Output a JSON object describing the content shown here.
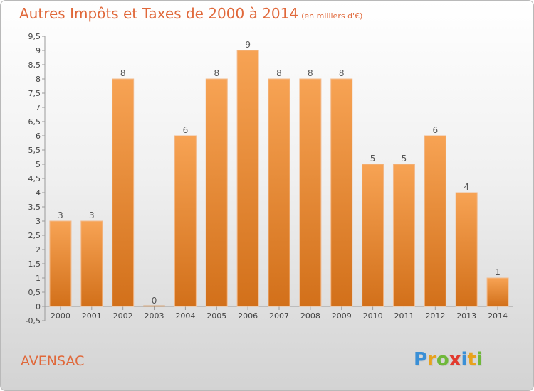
{
  "title": "Autres Impôts et Taxes de 2000 à 2014",
  "title_unit": "(en milliers d'€)",
  "place": "AVENSAC",
  "logo": {
    "text": "Proxiti",
    "letters": [
      {
        "ch": "P",
        "color": "#3a8fd6"
      },
      {
        "ch": "r",
        "color": "#e8a21c"
      },
      {
        "ch": "o",
        "color": "#6fb83a"
      },
      {
        "ch": "x",
        "color": "#e23a2e"
      },
      {
        "ch": "i",
        "color": "#3a8fd6"
      },
      {
        "ch": "t",
        "color": "#e8a21c"
      },
      {
        "ch": "i",
        "color": "#6fb83a"
      }
    ]
  },
  "colors": {
    "bar_top": "#f7a354",
    "bar_bottom": "#d2701a",
    "accent": "#e0683a"
  },
  "chart_data": {
    "type": "bar",
    "title": "Autres Impôts et Taxes de 2000 à 2014",
    "xlabel": "",
    "ylabel": "",
    "categories": [
      "2000",
      "2001",
      "2002",
      "2003",
      "2004",
      "2005",
      "2006",
      "2007",
      "2008",
      "2009",
      "2010",
      "2011",
      "2012",
      "2013",
      "2014"
    ],
    "values": [
      3,
      3,
      8,
      0,
      6,
      8,
      9,
      8,
      8,
      8,
      5,
      5,
      6,
      4,
      1
    ],
    "value_labels": [
      "3",
      "3",
      "8",
      "0",
      "6",
      "8",
      "9",
      "8",
      "8",
      "8",
      "5",
      "5",
      "6",
      "4",
      "1"
    ],
    "ylim": [
      -0.5,
      9.5
    ],
    "yticks": [
      -0.5,
      0,
      0.5,
      1,
      1.5,
      2,
      2.5,
      3,
      3.5,
      4,
      4.5,
      5,
      5.5,
      6,
      6.5,
      7,
      7.5,
      8,
      8.5,
      9,
      9.5
    ],
    "ytick_labels": [
      "-0,5",
      "0",
      "0,5",
      "1",
      "1,5",
      "2",
      "2,5",
      "3",
      "3,5",
      "4",
      "4,5",
      "5",
      "5,5",
      "6",
      "6,5",
      "7",
      "7,5",
      "8",
      "8,5",
      "9",
      "9,5"
    ],
    "grid": false,
    "legend": "none"
  }
}
